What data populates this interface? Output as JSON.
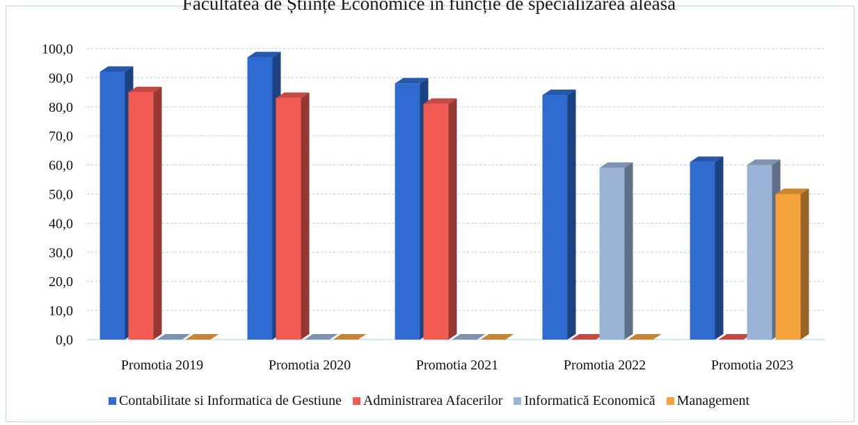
{
  "chart_data": {
    "type": "bar",
    "title": "Facultatea de Științe Economice în funcție de specializarea aleasă",
    "categories": [
      "Promotia 2019",
      "Promotia 2020",
      "Promotia 2021",
      "Promotia 2022",
      "Promotia 2023"
    ],
    "series": [
      {
        "name": "Contabilitate si Informatica de Gestiune",
        "color": "#2f6bd1",
        "values": [
          92.0,
          97.0,
          88.0,
          84.0,
          61.0
        ]
      },
      {
        "name": "Administrarea Afacerilor",
        "color": "#f25a52",
        "values": [
          85.0,
          83.0,
          81.0,
          0.0,
          0.0
        ]
      },
      {
        "name": "Informatică Economică",
        "color": "#9ab3d6",
        "values": [
          0.0,
          0.0,
          0.0,
          59.0,
          60.0
        ]
      },
      {
        "name": "Management",
        "color": "#f5a23c",
        "values": [
          0.0,
          0.0,
          0.0,
          0.0,
          50.0
        ]
      }
    ],
    "yticks": [
      "0,0",
      "10,0",
      "20,0",
      "30,0",
      "40,0",
      "50,0",
      "60,0",
      "70,0",
      "80,0",
      "90,0",
      "100,0"
    ],
    "ylim": [
      0,
      100
    ],
    "grid": true,
    "legend": "bottom"
  }
}
